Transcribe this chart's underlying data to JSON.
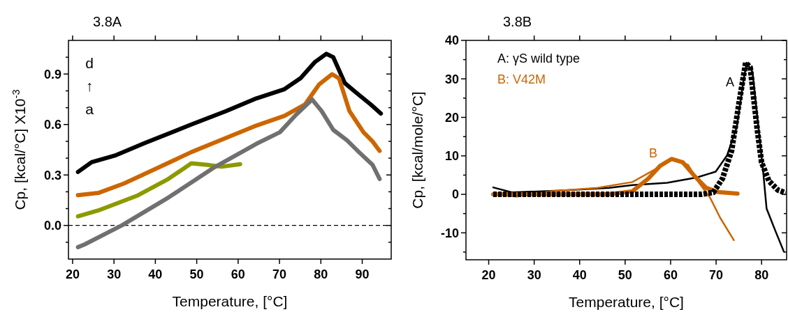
{
  "chart_data": [
    {
      "type": "line",
      "title": "3.8A",
      "xlabel": "Temperature, [°C]",
      "ylabel": "Cp, [kcal/°C] X10$^{-3}$",
      "xlim": [
        19,
        97
      ],
      "ylim": [
        -0.2,
        1.1
      ],
      "xticks": [
        20,
        30,
        40,
        50,
        60,
        70,
        80,
        90
      ],
      "yticks": [
        {
          "value": -0.1,
          "label": null
        },
        {
          "value": 0,
          "label": "0.0"
        },
        {
          "value": 0.1,
          "label": null
        },
        {
          "value": 0.2,
          "label": null
        },
        {
          "value": 0.3,
          "label": "0.3"
        },
        {
          "value": 0.4,
          "label": null
        },
        {
          "value": 0.5,
          "label": null
        },
        {
          "value": 0.6,
          "label": "0.6"
        },
        {
          "value": 0.7,
          "label": null
        },
        {
          "value": 0.8,
          "label": null
        },
        {
          "value": 0.9,
          "label": "0.9"
        },
        {
          "value": 1.0,
          "label": null
        }
      ],
      "grid": false,
      "annotations": [
        "d",
        "↑",
        "a"
      ],
      "ref_lines": [
        {
          "axis": "y",
          "value": 0,
          "color": "#000000",
          "line_style": "dashed"
        }
      ],
      "series": [
        {
          "color": "#000000",
          "x": [
            21.3,
            24.6,
            30.2,
            37.5,
            48.7,
            57.1,
            64.4,
            71.2,
            75.1,
            78.5,
            81.3,
            83,
            85.8,
            89.2,
            92,
            94.5
          ],
          "values": [
            0.318,
            0.376,
            0.415,
            0.49,
            0.6,
            0.68,
            0.755,
            0.81,
            0.875,
            0.97,
            1.02,
            1.0,
            0.846,
            0.776,
            0.72,
            0.665
          ]
        },
        {
          "color": "#cc6600",
          "x": [
            21.3,
            26.2,
            32.4,
            40.3,
            48.7,
            57.1,
            63.9,
            71.2,
            76.2,
            79.6,
            82.7,
            84.4,
            86.9,
            90.3,
            92.5,
            94.2
          ],
          "values": [
            0.18,
            0.193,
            0.249,
            0.339,
            0.436,
            0.52,
            0.589,
            0.651,
            0.72,
            0.839,
            0.899,
            0.874,
            0.68,
            0.554,
            0.499,
            0.443
          ]
        },
        {
          "color": "#8c9a00",
          "x": [
            21.3,
            26.2,
            35.8,
            43.1,
            48.7,
            52.6,
            56,
            60.5
          ],
          "values": [
            0.054,
            0.089,
            0.179,
            0.276,
            0.369,
            0.36,
            0.349,
            0.364
          ]
        },
        {
          "color": "#707070",
          "x": [
            21.3,
            22.9,
            31.9,
            43.1,
            54.3,
            64.4,
            70.1,
            74,
            77.9,
            80.2,
            83,
            86.3,
            89.2,
            92.5,
            94.2
          ],
          "values": [
            -0.129,
            -0.113,
            0.0,
            0.165,
            0.346,
            0.485,
            0.554,
            0.658,
            0.749,
            0.679,
            0.568,
            0.506,
            0.436,
            0.36,
            0.276
          ]
        }
      ]
    },
    {
      "type": "line",
      "title": "3.8B",
      "xlabel": "Temperature, [°C]",
      "ylabel": "Cp, [kcal/mole/°C]",
      "xlim": [
        15,
        85.5
      ],
      "ylim": [
        -17,
        40
      ],
      "xticks": [
        20,
        30,
        40,
        50,
        60,
        70,
        80
      ],
      "yticks": [
        {
          "value": -15,
          "label": null
        },
        {
          "value": -10,
          "label": "-10"
        },
        {
          "value": -5,
          "label": null
        },
        {
          "value": 0,
          "label": "0"
        },
        {
          "value": 5,
          "label": null
        },
        {
          "value": 10,
          "label": "10"
        },
        {
          "value": 15,
          "label": null
        },
        {
          "value": 20,
          "label": "20"
        },
        {
          "value": 25,
          "label": null
        },
        {
          "value": 30,
          "label": "30"
        },
        {
          "value": 35,
          "label": null
        },
        {
          "value": 40,
          "label": "40"
        }
      ],
      "grid": false,
      "legend": "top left",
      "annotations": [
        "A",
        "B"
      ],
      "series": [
        {
          "name": "A: γS wild type",
          "color": "#000000",
          "x": [
            21,
            25.1,
            36.3,
            46.5,
            51.6,
            59.2,
            65.8,
            69.9,
            72.4,
            74.5,
            76,
            76.7,
            78,
            79.3,
            80.3,
            81.1,
            83.1,
            84.9
          ],
          "values": [
            1.8,
            0.5,
            1,
            1.7,
            2.4,
            3.0,
            4.4,
            5.9,
            10.1,
            17.3,
            29.4,
            34.2,
            31.8,
            17.3,
            6.5,
            -3.7,
            -9.7,
            -14.9
          ]
        },
        {
          "name": "B: V42M",
          "color": "#cc6600",
          "x": [
            21,
            26.1,
            33.7,
            43.9,
            51.6,
            56.6,
            60.2,
            63.8,
            66.3,
            68.6,
            70.9,
            73.9
          ],
          "values": [
            0,
            -0.6,
            0.8,
            1.7,
            3.2,
            6.5,
            8.9,
            7.7,
            2.9,
            -0.7,
            -6.1,
            -11.9
          ]
        },
        {
          "color": "#cc6600",
          "line_style": "solid",
          "x": [
            21,
            46.5,
            51.6,
            55.1,
            57.7,
            60.2,
            62.7,
            65.3,
            67.8,
            70.4,
            74.7
          ],
          "values": [
            0,
            0,
            0.8,
            4.1,
            7.4,
            9.2,
            8.3,
            4.7,
            1.7,
            0.6,
            0.2
          ]
        },
        {
          "color": "#000000",
          "line_style": "dotted",
          "x": [
            21,
            66.8,
            69.4,
            71.4,
            73.4,
            75,
            76.5,
            77.5,
            79,
            80,
            81.6,
            83.6,
            85.3
          ],
          "values": [
            0,
            0,
            0.5,
            4.1,
            11.3,
            23.4,
            34.2,
            33,
            17.3,
            8.3,
            3.5,
            1.1,
            0.4
          ]
        }
      ]
    }
  ]
}
